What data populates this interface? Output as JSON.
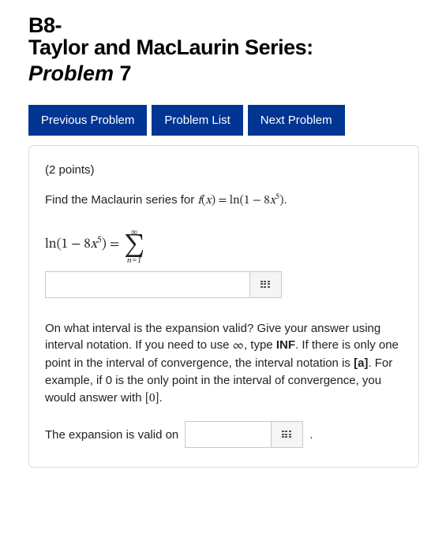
{
  "header": {
    "section_label": "B8-",
    "section_title": "Taylor and MacLaurin Series:",
    "problem_word": "Problem",
    "problem_number": "7"
  },
  "nav": {
    "prev": "Previous Problem",
    "list": "Problem List",
    "next": "Next Problem",
    "bg_color": "#003594"
  },
  "problem": {
    "points_text": "(2 points)",
    "prompt_prefix": "Find the Maclaurin series for ",
    "func_lhs_html": "f(x) = ln(1 − 8x⁵)",
    "period": ".",
    "eq_lhs_plain": "ln(1 − 8x⁵) =",
    "sigma_top": "∞",
    "sigma_bottom": "n=1",
    "interval_para": "On what interval is the expansion valid? Give your answer using interval notation. If you need to use ∞, type INF. If there is only one point in the interval of convergence, the interval notation is [a]. For example, if 0 is the only point in the interval of convergence, you would answer with [0].",
    "expansion_label": "The expansion is valid on"
  }
}
